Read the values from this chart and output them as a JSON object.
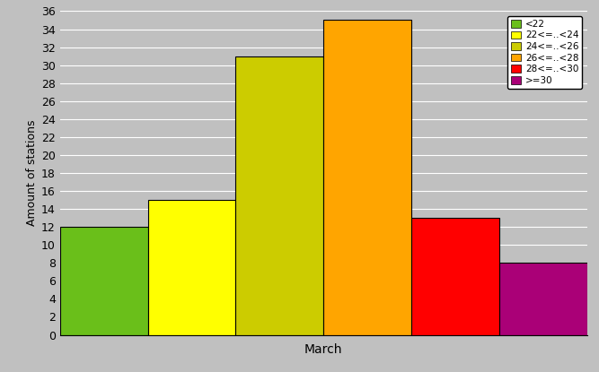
{
  "xlabel": "March",
  "ylabel": "Amount of stations",
  "categories": [
    "<22",
    "22<=..<24",
    "24<=..<26",
    "26<=..<28",
    "28<=..<30",
    ">=30"
  ],
  "values": [
    12,
    15,
    31,
    35,
    13,
    8
  ],
  "bar_colors": [
    "#6abf1a",
    "#ffff00",
    "#cccc00",
    "#ffa500",
    "#ff0000",
    "#aa0077"
  ],
  "ylim": [
    0,
    36
  ],
  "yticks": [
    0,
    2,
    4,
    6,
    8,
    10,
    12,
    14,
    16,
    18,
    20,
    22,
    24,
    26,
    28,
    30,
    32,
    34,
    36
  ],
  "background_color": "#c0c0c0",
  "legend_labels": [
    "<22",
    "22<=..<24",
    "24<=..<26",
    "26<=..<28",
    "28<=..<30",
    ">=30"
  ],
  "legend_colors": [
    "#6abf1a",
    "#ffff00",
    "#cccc00",
    "#ffa500",
    "#ff0000",
    "#aa0077"
  ]
}
